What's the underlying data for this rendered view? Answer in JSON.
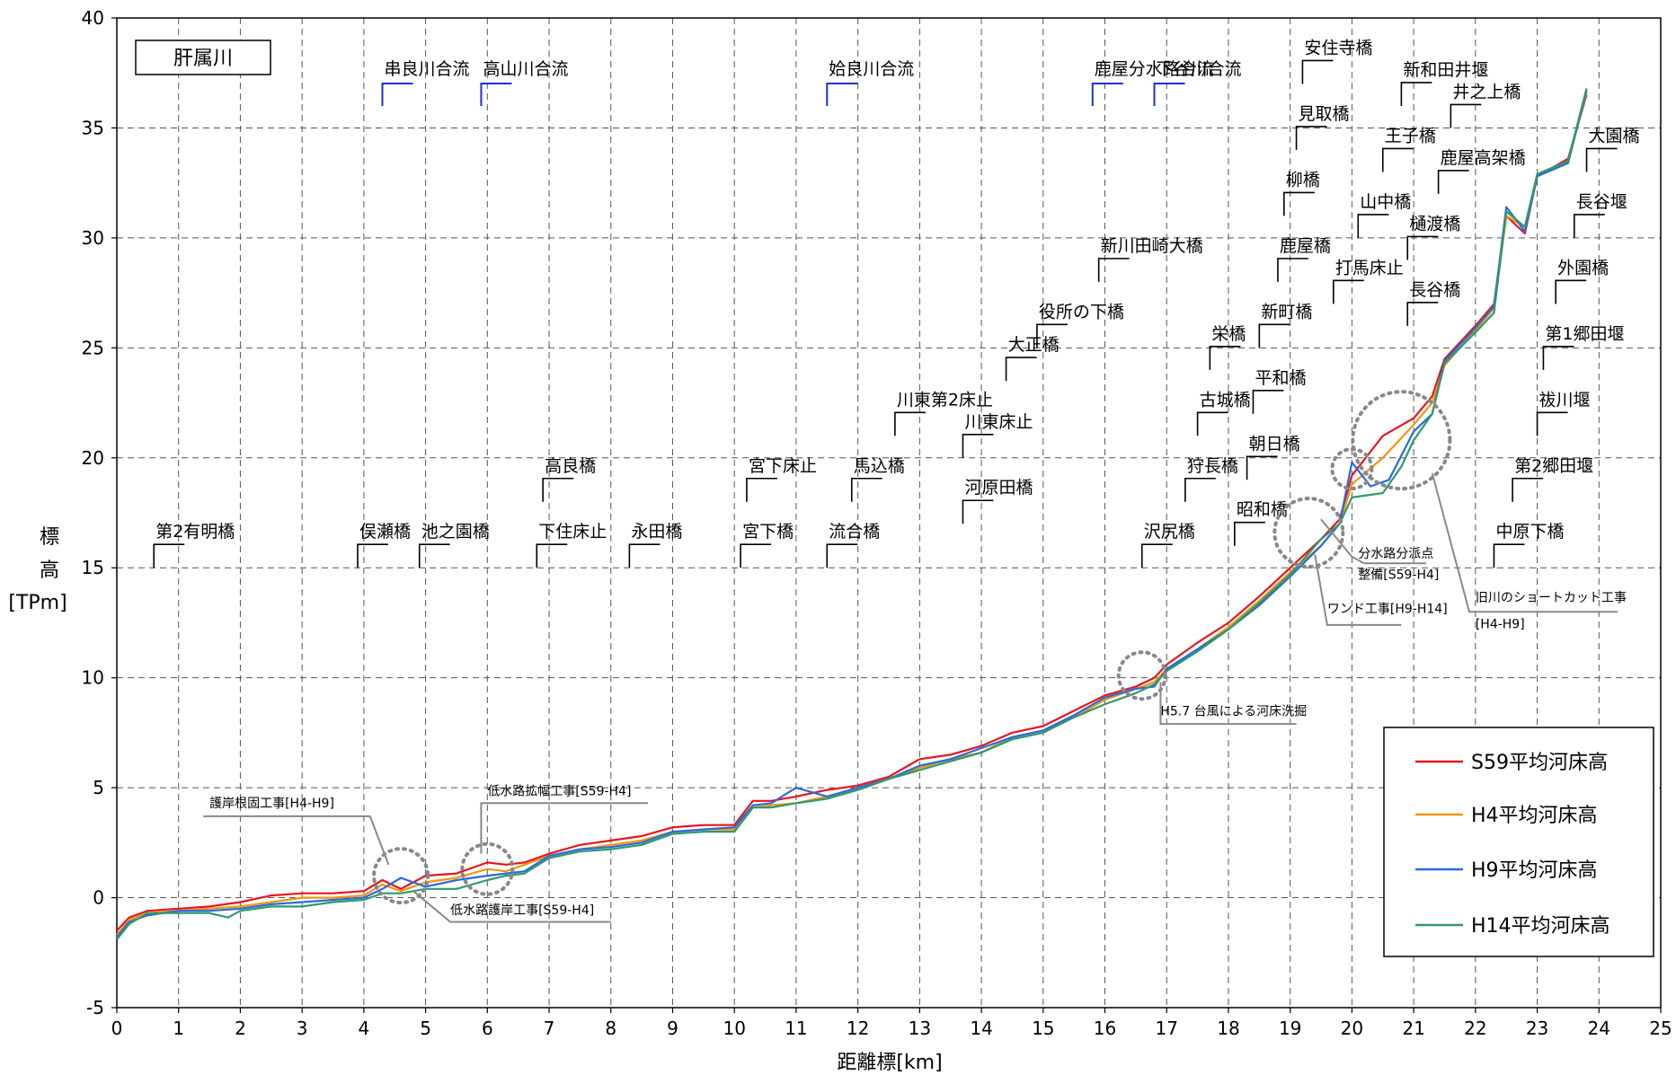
{
  "chart_data": {
    "type": "line",
    "title": "肝属川",
    "xlabel": "距離標[km]",
    "ylabel_lines": [
      "標",
      "高",
      "[TPm]"
    ],
    "xlim": [
      0,
      25
    ],
    "ylim": [
      -5,
      40
    ],
    "x_ticks": [
      0,
      1,
      2,
      3,
      4,
      5,
      6,
      7,
      8,
      9,
      10,
      11,
      12,
      13,
      14,
      15,
      16,
      17,
      18,
      19,
      20,
      21,
      22,
      23,
      24,
      25
    ],
    "y_ticks": [
      -5,
      0,
      5,
      10,
      15,
      20,
      25,
      30,
      35,
      40
    ],
    "grid": true,
    "legend_position": "bottom-right",
    "series": [
      {
        "name": "S59平均河床高",
        "color": "#e8141e",
        "points": [
          [
            0,
            -1.5
          ],
          [
            0.2,
            -0.9
          ],
          [
            0.5,
            -0.6
          ],
          [
            1,
            -0.5
          ],
          [
            1.5,
            -0.4
          ],
          [
            2,
            -0.2
          ],
          [
            2.5,
            0.1
          ],
          [
            3,
            0.2
          ],
          [
            3.5,
            0.2
          ],
          [
            4,
            0.3
          ],
          [
            4.3,
            0.8
          ],
          [
            4.6,
            0.4
          ],
          [
            5,
            1
          ],
          [
            5.5,
            1.1
          ],
          [
            6,
            1.6
          ],
          [
            6.3,
            1.5
          ],
          [
            6.6,
            1.6
          ],
          [
            7,
            2
          ],
          [
            7.5,
            2.4
          ],
          [
            8,
            2.6
          ],
          [
            8.5,
            2.8
          ],
          [
            9,
            3.2
          ],
          [
            9.5,
            3.3
          ],
          [
            10,
            3.3
          ],
          [
            10.3,
            4.4
          ],
          [
            10.6,
            4.4
          ],
          [
            11,
            4.6
          ],
          [
            11.5,
            4.9
          ],
          [
            12,
            5.1
          ],
          [
            12.5,
            5.5
          ],
          [
            13,
            6.3
          ],
          [
            13.5,
            6.5
          ],
          [
            14,
            6.9
          ],
          [
            14.5,
            7.5
          ],
          [
            15,
            7.8
          ],
          [
            15.5,
            8.5
          ],
          [
            16,
            9.2
          ],
          [
            16.5,
            9.6
          ],
          [
            16.8,
            10
          ],
          [
            17,
            10.6
          ],
          [
            17.5,
            11.6
          ],
          [
            18,
            12.5
          ],
          [
            18.5,
            13.7
          ],
          [
            19,
            15
          ],
          [
            19.5,
            16.3
          ],
          [
            19.8,
            17.2
          ],
          [
            20,
            19.2
          ],
          [
            20.5,
            21
          ],
          [
            21,
            21.8
          ],
          [
            21.3,
            22.8
          ],
          [
            21.5,
            24.5
          ],
          [
            22,
            26
          ],
          [
            22.3,
            27
          ],
          [
            22.5,
            31
          ],
          [
            22.8,
            30.2
          ],
          [
            23,
            32.8
          ],
          [
            23.5,
            33.6
          ],
          [
            23.8,
            36.5
          ]
        ]
      },
      {
        "name": "H4平均河床高",
        "color": "#f0960a",
        "points": [
          [
            0,
            -1.7
          ],
          [
            0.2,
            -1
          ],
          [
            0.5,
            -0.7
          ],
          [
            1,
            -0.6
          ],
          [
            1.5,
            -0.5
          ],
          [
            2,
            -0.4
          ],
          [
            2.5,
            -0.2
          ],
          [
            3,
            0
          ],
          [
            3.5,
            0
          ],
          [
            4,
            0.1
          ],
          [
            4.3,
            0.6
          ],
          [
            4.6,
            0.3
          ],
          [
            5,
            0.7
          ],
          [
            5.5,
            0.9
          ],
          [
            6,
            1.3
          ],
          [
            6.3,
            1.2
          ],
          [
            6.6,
            1.5
          ],
          [
            7,
            1.9
          ],
          [
            7.5,
            2.2
          ],
          [
            8,
            2.4
          ],
          [
            8.5,
            2.6
          ],
          [
            9,
            3
          ],
          [
            9.5,
            3.1
          ],
          [
            10,
            3.1
          ],
          [
            10.3,
            4.1
          ],
          [
            10.6,
            4.2
          ],
          [
            11,
            4.3
          ],
          [
            11.5,
            4.6
          ],
          [
            12,
            4.9
          ],
          [
            12.5,
            5.4
          ],
          [
            13,
            5.9
          ],
          [
            13.5,
            6.3
          ],
          [
            14,
            6.6
          ],
          [
            14.5,
            7.3
          ],
          [
            15,
            7.6
          ],
          [
            15.5,
            8.2
          ],
          [
            16,
            9
          ],
          [
            16.5,
            9.5
          ],
          [
            16.8,
            9.8
          ],
          [
            17,
            10.4
          ],
          [
            17.5,
            11.3
          ],
          [
            18,
            12.3
          ],
          [
            18.5,
            13.5
          ],
          [
            19,
            14.8
          ],
          [
            19.5,
            16
          ],
          [
            19.8,
            17
          ],
          [
            20,
            18.8
          ],
          [
            20.5,
            20
          ],
          [
            21,
            21.5
          ],
          [
            21.3,
            22.5
          ],
          [
            21.5,
            24.2
          ],
          [
            22,
            25.8
          ],
          [
            22.3,
            26.8
          ],
          [
            22.5,
            31
          ],
          [
            22.8,
            30.5
          ],
          [
            23,
            32.9
          ],
          [
            23.5,
            33.5
          ],
          [
            23.8,
            36.6
          ]
        ]
      },
      {
        "name": "H9平均河床高",
        "color": "#2a6ae0",
        "points": [
          [
            0,
            -1.8
          ],
          [
            0.2,
            -1.1
          ],
          [
            0.5,
            -0.8
          ],
          [
            1,
            -0.6
          ],
          [
            1.5,
            -0.6
          ],
          [
            2,
            -0.5
          ],
          [
            2.5,
            -0.3
          ],
          [
            3,
            -0.2
          ],
          [
            3.5,
            -0.1
          ],
          [
            4,
            0
          ],
          [
            4.3,
            0.4
          ],
          [
            4.6,
            0.9
          ],
          [
            5,
            0.5
          ],
          [
            5.5,
            0.8
          ],
          [
            6,
            1
          ],
          [
            6.3,
            1.1
          ],
          [
            6.6,
            1.2
          ],
          [
            7,
            1.9
          ],
          [
            7.5,
            2.2
          ],
          [
            8,
            2.3
          ],
          [
            8.5,
            2.5
          ],
          [
            9,
            3
          ],
          [
            9.5,
            3.1
          ],
          [
            10,
            3.2
          ],
          [
            10.3,
            4.2
          ],
          [
            10.6,
            4.3
          ],
          [
            11,
            5
          ],
          [
            11.5,
            4.6
          ],
          [
            12,
            5
          ],
          [
            12.5,
            5.4
          ],
          [
            13,
            6
          ],
          [
            13.5,
            6.3
          ],
          [
            14,
            6.8
          ],
          [
            14.5,
            7.3
          ],
          [
            15,
            7.6
          ],
          [
            15.5,
            8.3
          ],
          [
            16,
            9.1
          ],
          [
            16.5,
            9.5
          ],
          [
            16.8,
            9.6
          ],
          [
            17,
            10.4
          ],
          [
            17.5,
            11.3
          ],
          [
            18,
            12.2
          ],
          [
            18.5,
            13.3
          ],
          [
            19,
            14.6
          ],
          [
            19.5,
            16
          ],
          [
            19.8,
            17
          ],
          [
            20,
            19.8
          ],
          [
            20.3,
            18.7
          ],
          [
            20.6,
            19
          ],
          [
            21,
            21.2
          ],
          [
            21.3,
            22
          ],
          [
            21.5,
            24.4
          ],
          [
            22,
            25.9
          ],
          [
            22.3,
            26.9
          ],
          [
            22.5,
            31.4
          ],
          [
            22.8,
            30.3
          ],
          [
            23,
            32.8
          ],
          [
            23.5,
            33.4
          ],
          [
            23.8,
            36.7
          ]
        ]
      },
      {
        "name": "H14平均河床高",
        "color": "#2e9a6a",
        "points": [
          [
            0,
            -1.9
          ],
          [
            0.2,
            -1.2
          ],
          [
            0.5,
            -0.7
          ],
          [
            1,
            -0.7
          ],
          [
            1.5,
            -0.7
          ],
          [
            1.8,
            -0.9
          ],
          [
            2,
            -0.6
          ],
          [
            2.5,
            -0.4
          ],
          [
            3,
            -0.4
          ],
          [
            3.5,
            -0.2
          ],
          [
            4,
            -0.1
          ],
          [
            4.3,
            0.2
          ],
          [
            4.6,
            0.2
          ],
          [
            5,
            0.4
          ],
          [
            5.5,
            0.4
          ],
          [
            6,
            0.8
          ],
          [
            6.3,
            1
          ],
          [
            6.6,
            1.1
          ],
          [
            7,
            1.8
          ],
          [
            7.5,
            2.1
          ],
          [
            8,
            2.2
          ],
          [
            8.5,
            2.4
          ],
          [
            9,
            2.9
          ],
          [
            9.5,
            3
          ],
          [
            10,
            3
          ],
          [
            10.3,
            4.1
          ],
          [
            10.6,
            4.1
          ],
          [
            11,
            4.3
          ],
          [
            11.5,
            4.5
          ],
          [
            12,
            4.9
          ],
          [
            12.5,
            5.4
          ],
          [
            13,
            5.8
          ],
          [
            13.5,
            6.2
          ],
          [
            14,
            6.6
          ],
          [
            14.5,
            7.2
          ],
          [
            15,
            7.5
          ],
          [
            15.5,
            8.2
          ],
          [
            16,
            8.8
          ],
          [
            16.5,
            9.3
          ],
          [
            16.8,
            9.7
          ],
          [
            17,
            10.3
          ],
          [
            17.5,
            11.2
          ],
          [
            18,
            12.2
          ],
          [
            18.5,
            13.4
          ],
          [
            19,
            14.7
          ],
          [
            19.5,
            16.3
          ],
          [
            19.8,
            17
          ],
          [
            20,
            18.2
          ],
          [
            20.5,
            18.4
          ],
          [
            20.8,
            19.6
          ],
          [
            21,
            20.8
          ],
          [
            21.3,
            22
          ],
          [
            21.5,
            24.3
          ],
          [
            22,
            25.7
          ],
          [
            22.3,
            26.6
          ],
          [
            22.5,
            31.2
          ],
          [
            22.8,
            30.5
          ],
          [
            23,
            32.9
          ],
          [
            23.5,
            33.5
          ],
          [
            23.8,
            36.8
          ]
        ]
      }
    ],
    "bridges": [
      {
        "label": "第2有明橋",
        "km": 0.6,
        "mark_y": 15
      },
      {
        "label": "俣瀬橋",
        "km": 3.9,
        "mark_y": 15
      },
      {
        "label": "池之園橋",
        "km": 4.9,
        "mark_y": 15
      },
      {
        "label": "下住床止",
        "km": 6.8,
        "mark_y": 15
      },
      {
        "label": "高良橋",
        "km": 6.9,
        "mark_y": 18
      },
      {
        "label": "永田橋",
        "km": 8.3,
        "mark_y": 15
      },
      {
        "label": "宮下橋",
        "km": 10.1,
        "mark_y": 15
      },
      {
        "label": "宮下床止",
        "km": 10.2,
        "mark_y": 18
      },
      {
        "label": "流合橋",
        "km": 11.5,
        "mark_y": 15
      },
      {
        "label": "馬込橋",
        "km": 11.9,
        "mark_y": 18
      },
      {
        "label": "川東第2床止",
        "km": 12.6,
        "mark_y": 21
      },
      {
        "label": "河原田橋",
        "km": 13.7,
        "mark_y": 17
      },
      {
        "label": "川東床止",
        "km": 13.7,
        "mark_y": 20
      },
      {
        "label": "大正橋",
        "km": 14.4,
        "mark_y": 23.5
      },
      {
        "label": "役所の下橋",
        "km": 14.9,
        "mark_y": 25
      },
      {
        "label": "新川田崎大橋",
        "km": 15.9,
        "mark_y": 28
      },
      {
        "label": "沢尻橋",
        "km": 16.6,
        "mark_y": 15
      },
      {
        "label": "狩長橋",
        "km": 17.3,
        "mark_y": 18
      },
      {
        "label": "古城橋",
        "km": 17.5,
        "mark_y": 21
      },
      {
        "label": "栄橋",
        "km": 17.7,
        "mark_y": 24
      },
      {
        "label": "昭和橋",
        "km": 18.1,
        "mark_y": 16
      },
      {
        "label": "朝日橋",
        "km": 18.3,
        "mark_y": 19
      },
      {
        "label": "平和橋",
        "km": 18.4,
        "mark_y": 22
      },
      {
        "label": "新町橋",
        "km": 18.5,
        "mark_y": 25
      },
      {
        "label": "鹿屋橋",
        "km": 18.8,
        "mark_y": 28
      },
      {
        "label": "柳橋",
        "km": 18.9,
        "mark_y": 31
      },
      {
        "label": "見取橋",
        "km": 19.1,
        "mark_y": 34
      },
      {
        "label": "安住寺橋",
        "km": 19.2,
        "mark_y": 37
      },
      {
        "label": "打馬床止",
        "km": 19.7,
        "mark_y": 27
      },
      {
        "label": "山中橋",
        "km": 20.1,
        "mark_y": 30
      },
      {
        "label": "王子橋",
        "km": 20.5,
        "mark_y": 33
      },
      {
        "label": "長谷橋",
        "km": 20.9,
        "mark_y": 26
      },
      {
        "label": "樋渡橋",
        "km": 20.9,
        "mark_y": 29
      },
      {
        "label": "新和田井堰",
        "km": 20.8,
        "mark_y": 36
      },
      {
        "label": "鹿屋高架橋",
        "km": 21.4,
        "mark_y": 32
      },
      {
        "label": "井之上橋",
        "km": 21.6,
        "mark_y": 35
      },
      {
        "label": "中原下橋",
        "km": 22.3,
        "mark_y": 15
      },
      {
        "label": "第2郷田堰",
        "km": 22.6,
        "mark_y": 18
      },
      {
        "label": "祓川堰",
        "km": 23.0,
        "mark_y": 21
      },
      {
        "label": "第1郷田堰",
        "km": 23.1,
        "mark_y": 24
      },
      {
        "label": "外園橋",
        "km": 23.3,
        "mark_y": 27
      },
      {
        "label": "長谷堰",
        "km": 23.6,
        "mark_y": 30
      },
      {
        "label": "大園橋",
        "km": 23.8,
        "mark_y": 33
      }
    ],
    "confluences": [
      {
        "label": "串良川合流",
        "km": 4.3
      },
      {
        "label": "高山川合流",
        "km": 5.9
      },
      {
        "label": "姶良川合流",
        "km": 11.5
      },
      {
        "label": "鹿屋分水路合流",
        "km": 15.8
      },
      {
        "label": "下谷川合流",
        "km": 16.8
      }
    ],
    "annotations": [
      {
        "label": "護岸根固工事[H4-H9]"
      },
      {
        "label": "低水路拡幅工事[S59-H4]"
      },
      {
        "label": "低水路護岸工事[S59-H4]"
      },
      {
        "label": "H5.7 台風による河床洗掘"
      },
      {
        "label": "分水路分派点"
      },
      {
        "label": "整備[S59-H4]"
      },
      {
        "label": "ワンド工事[H9-H14]"
      },
      {
        "label": "旧川のショートカット工事"
      },
      {
        "label": "[H4-H9]"
      }
    ]
  }
}
